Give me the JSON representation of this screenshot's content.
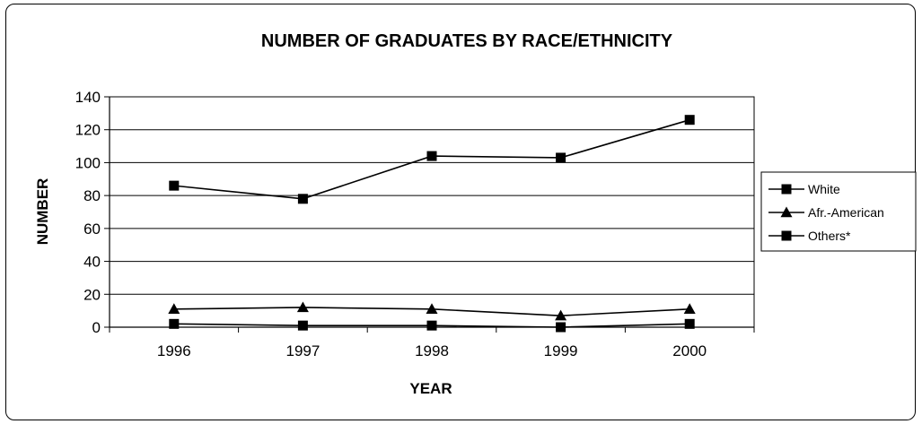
{
  "chart_data": {
    "type": "line",
    "title": "NUMBER OF GRADUATES BY RACE/ETHNICITY",
    "xlabel": "YEAR",
    "ylabel": "NUMBER",
    "categories": [
      "1996",
      "1997",
      "1998",
      "1999",
      "2000"
    ],
    "ylim": [
      0,
      140
    ],
    "yticks": [
      0,
      20,
      40,
      60,
      80,
      100,
      120,
      140
    ],
    "grid": true,
    "legend_position": "right",
    "series": [
      {
        "name": "White",
        "marker": "square",
        "values": [
          86,
          78,
          104,
          103,
          126
        ]
      },
      {
        "name": "Afr.-American",
        "marker": "triangle",
        "values": [
          11,
          12,
          11,
          7,
          11
        ]
      },
      {
        "name": "Others*",
        "marker": "square",
        "values": [
          2,
          1,
          1,
          0,
          2
        ]
      }
    ],
    "colors": {
      "line": "#000000",
      "grid": "#000000",
      "background": "#ffffff"
    }
  }
}
